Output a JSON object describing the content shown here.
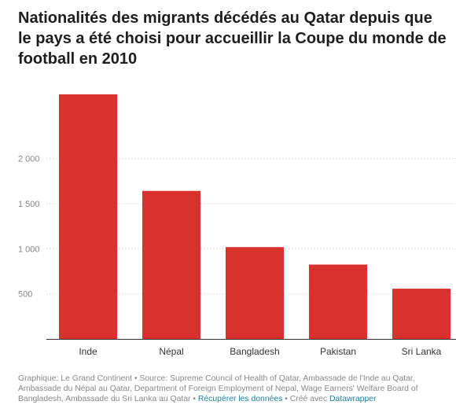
{
  "title": "Nationalités des migrants décédés au Qatar depuis que\nle pays a été choisi pour accueillir la Coupe du monde de\nfootball en 2010",
  "chart_data": {
    "type": "bar",
    "categories": [
      "Inde",
      "Népal",
      "Bangladesh",
      "Pakistan",
      "Sri Lanka"
    ],
    "values": [
      2711,
      1641,
      1018,
      824,
      557
    ],
    "yticks": [
      500,
      1000,
      1500,
      2000
    ],
    "ytick_labels": [
      "500",
      "1 000",
      "1 500",
      "2 000"
    ],
    "ylim": [
      0,
      2711
    ],
    "bar_color": "#d8312e",
    "grid": "horizontal dotted",
    "title": "Nationalités des migrants décédés au Qatar depuis que le pays a été choisi pour accueillir la Coupe du monde de football en 2010"
  },
  "footer": {
    "text": "Graphique: Le Grand Continent • Source: Supreme Council of Health of Qatar, Ambassade de l'Inde au Qatar, Ambassade du Népal au Qatar, Department of Foreign Employment of Nepal, Wage Earners' Welfare Board of Bangladesh, Ambassade du Sri Lanka au Qatar • ",
    "link_data": "Récupérer les données",
    "sep": " • Créé avec ",
    "link_tool": "Datawrapper"
  },
  "colors": {
    "bar": "#d8312e",
    "link": "#1d81a2",
    "text": "#1d1d1d",
    "muted": "#888888"
  }
}
